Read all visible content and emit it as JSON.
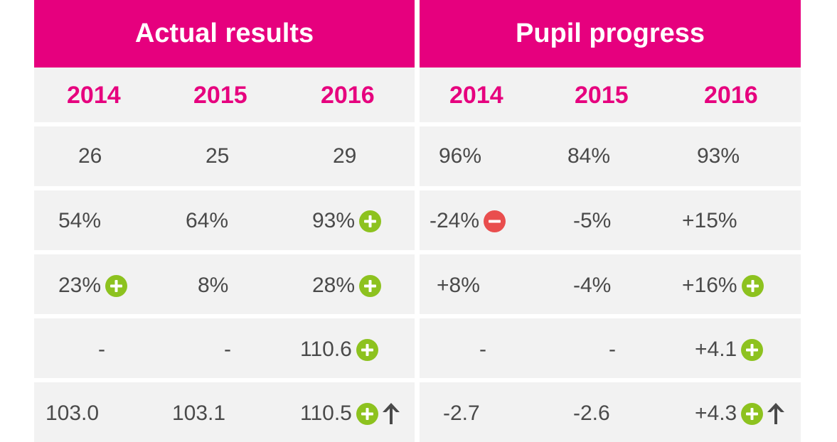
{
  "colors": {
    "accent": "#e6007e",
    "positive": "#8dc21f",
    "negative": "#e94e4e",
    "text": "#4a4a4a",
    "panel_bg": "#f2f2f2"
  },
  "sections": {
    "actual": {
      "title": "Actual results",
      "years": [
        "2014",
        "2015",
        "2016"
      ],
      "rows": [
        [
          "26",
          "25",
          "29"
        ],
        [
          "54%",
          "64%",
          "93%"
        ],
        [
          "23%",
          "8%",
          "28%"
        ],
        [
          "-",
          "-",
          "110.6"
        ],
        [
          "103.0",
          "103.1",
          "110.5"
        ]
      ]
    },
    "progress": {
      "title": "Pupil progress",
      "years": [
        "2014",
        "2015",
        "2016"
      ],
      "rows": [
        [
          "96%",
          "84%",
          "93%"
        ],
        [
          "-24%",
          "-5%",
          "+15%"
        ],
        [
          "+8%",
          "-4%",
          "+16%"
        ],
        [
          "-",
          "-",
          "+4.1"
        ],
        [
          "-2.7",
          "-2.6",
          "+4.3"
        ]
      ]
    }
  },
  "icons": {
    "plus": "plus-circle-icon",
    "minus": "minus-circle-icon",
    "up": "arrow-up-icon"
  }
}
